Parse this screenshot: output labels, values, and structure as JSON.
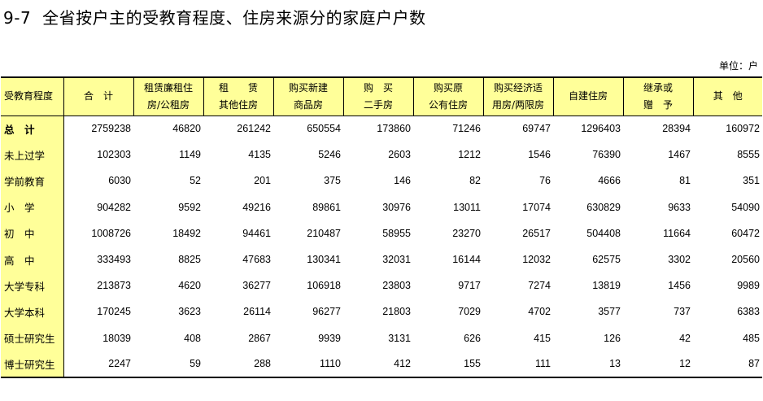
{
  "title": {
    "number": "9-7",
    "text": "全省按户主的受教育程度、住房来源分的家庭户户数"
  },
  "unit": "单位：户",
  "columns": [
    {
      "line1": "受教育程度",
      "line2": ""
    },
    {
      "line1": "合　计",
      "line2": ""
    },
    {
      "line1": "租赁廉租住",
      "line2": "房/公租房"
    },
    {
      "line1": "租　　赁",
      "line2": "其他住房"
    },
    {
      "line1": "购买新建",
      "line2": "商品房"
    },
    {
      "line1": "购　买",
      "line2": "二手房"
    },
    {
      "line1": "购买原",
      "line2": "公有住房"
    },
    {
      "line1": "购买经济适",
      "line2": "用房/两限房"
    },
    {
      "line1": "自建住房",
      "line2": ""
    },
    {
      "line1": "继承或",
      "line2": "赠　予"
    },
    {
      "line1": "其　他",
      "line2": ""
    }
  ],
  "rows": [
    {
      "label": "总　计",
      "values": [
        "2759238",
        "46820",
        "261242",
        "650554",
        "173860",
        "71246",
        "69747",
        "1296403",
        "28394",
        "160972"
      ]
    },
    {
      "label": "未上过学",
      "values": [
        "102303",
        "1149",
        "4135",
        "5246",
        "2603",
        "1212",
        "1546",
        "76390",
        "1467",
        "8555"
      ]
    },
    {
      "label": "学前教育",
      "values": [
        "6030",
        "52",
        "201",
        "375",
        "146",
        "82",
        "76",
        "4666",
        "81",
        "351"
      ]
    },
    {
      "label": "小　学",
      "values": [
        "904282",
        "9592",
        "49216",
        "89861",
        "30976",
        "13011",
        "17074",
        "630829",
        "9633",
        "54090"
      ]
    },
    {
      "label": "初　中",
      "values": [
        "1008726",
        "18492",
        "94461",
        "210487",
        "58955",
        "23270",
        "26517",
        "504408",
        "11664",
        "60472"
      ]
    },
    {
      "label": "高　中",
      "values": [
        "333493",
        "8825",
        "47683",
        "130341",
        "32031",
        "16144",
        "12032",
        "62575",
        "3302",
        "20560"
      ]
    },
    {
      "label": "大学专科",
      "values": [
        "213873",
        "4620",
        "36277",
        "106918",
        "23803",
        "9717",
        "7274",
        "13819",
        "1456",
        "9989"
      ]
    },
    {
      "label": "大学本科",
      "values": [
        "170245",
        "3623",
        "26114",
        "96277",
        "21803",
        "7029",
        "4702",
        "3577",
        "737",
        "6383"
      ]
    },
    {
      "label": "硕士研究生",
      "values": [
        "18039",
        "408",
        "2867",
        "9939",
        "3131",
        "626",
        "415",
        "126",
        "42",
        "485"
      ]
    },
    {
      "label": "博士研究生",
      "values": [
        "2247",
        "59",
        "288",
        "1110",
        "412",
        "155",
        "111",
        "13",
        "12",
        "87"
      ]
    }
  ]
}
